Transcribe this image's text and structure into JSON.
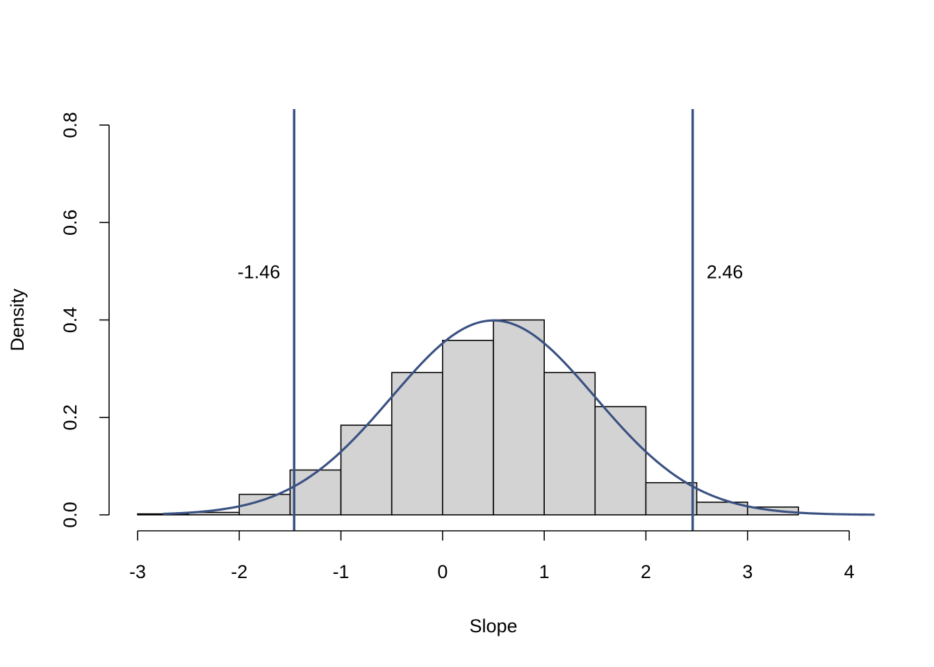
{
  "colors": {
    "bar_fill": "#d3d3d3",
    "bar_stroke": "#000000",
    "accent": "#3a5182",
    "axis": "#000000"
  },
  "chart_data": {
    "type": "bar",
    "title": "",
    "xlabel": "Slope",
    "ylabel": "Density",
    "xlim": [
      -3,
      4.25
    ],
    "ylim": [
      0,
      0.8
    ],
    "x_ticks": [
      -3,
      -2,
      -1,
      0,
      1,
      2,
      3,
      4
    ],
    "x_tick_labels": [
      "-3",
      "-2",
      "-1",
      "0",
      "1",
      "2",
      "3",
      "4"
    ],
    "y_ticks": [
      0,
      0.2,
      0.4,
      0.6,
      0.8
    ],
    "y_tick_labels": [
      "0.0",
      "0.2",
      "0.4",
      "0.6",
      "0.8"
    ],
    "grid": false,
    "bins": [
      {
        "x0": -3.0,
        "x1": -2.5,
        "density": 0.002
      },
      {
        "x0": -2.5,
        "x1": -2.0,
        "density": 0.005
      },
      {
        "x0": -2.0,
        "x1": -1.5,
        "density": 0.042
      },
      {
        "x0": -1.5,
        "x1": -1.0,
        "density": 0.092
      },
      {
        "x0": -1.0,
        "x1": -0.5,
        "density": 0.184
      },
      {
        "x0": -0.5,
        "x1": 0.0,
        "density": 0.292
      },
      {
        "x0": 0.0,
        "x1": 0.5,
        "density": 0.358
      },
      {
        "x0": 0.5,
        "x1": 1.0,
        "density": 0.4
      },
      {
        "x0": 1.0,
        "x1": 1.5,
        "density": 0.292
      },
      {
        "x0": 1.5,
        "x1": 2.0,
        "density": 0.222
      },
      {
        "x0": 2.0,
        "x1": 2.5,
        "density": 0.066
      },
      {
        "x0": 2.5,
        "x1": 3.0,
        "density": 0.026
      },
      {
        "x0": 3.0,
        "x1": 3.5,
        "density": 0.016
      }
    ],
    "density_curve": {
      "distribution": "normal",
      "mean": 0.5,
      "sd": 1.0,
      "x_range": [
        -2.75,
        4.25
      ]
    },
    "vertical_lines": [
      {
        "x": -1.46,
        "label": "-1.46",
        "label_y": 0.5,
        "label_side": "left"
      },
      {
        "x": 2.46,
        "label": "2.46",
        "label_y": 0.5,
        "label_side": "right"
      }
    ]
  }
}
